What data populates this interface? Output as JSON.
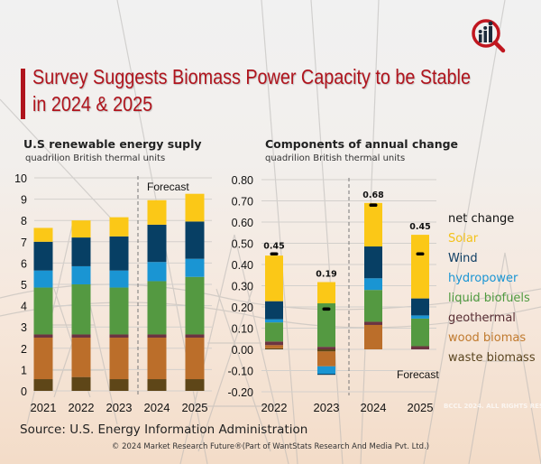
{
  "header": {
    "title_line1": "Survey Suggests Biomass Power Capacity to be Stable",
    "title_line2": "in 2024 & 2025",
    "logo": "market-research-future-logo"
  },
  "colors": {
    "accent": "#b0141d",
    "Solar": "#fbc817",
    "Wind": "#073f64",
    "hydropower": "#1a95d3",
    "liquid biofuels": "#549941",
    "geothermal": "#6c3441",
    "wood biomas": "#bb6e2a",
    "waste biomass": "#5e4618",
    "net change": "#000000"
  },
  "legend": {
    "items": [
      {
        "label": "net change",
        "color": "#111111"
      },
      {
        "label": "Solar",
        "color": "#f3c21a"
      },
      {
        "label": "Wind",
        "color": "#0e3d63"
      },
      {
        "label": "hydropower",
        "color": "#1a95d3"
      },
      {
        "label": "liquid biofuels",
        "color": "#4f9a3f"
      },
      {
        "label": "geothermal",
        "color": "#5a2f35"
      },
      {
        "label": "wood biomas",
        "color": "#c07a2e"
      },
      {
        "label": "waste biomass",
        "color": "#5a4520"
      }
    ]
  },
  "chart_data": [
    {
      "type": "bar",
      "stacked": true,
      "title": "U.S renewable energy suply",
      "subtitle": "quadrilion British thermal units",
      "xlabel": "",
      "ylabel": "",
      "categories": [
        "2021",
        "2022",
        "2023",
        "2024",
        "2025"
      ],
      "ylim": [
        0,
        10
      ],
      "yticks": [
        "0",
        "1",
        "2",
        "3",
        "4",
        "5",
        "6",
        "7",
        "8",
        "9",
        "10"
      ],
      "grid": true,
      "annotation": "Forecast",
      "forecast_start_index": 3,
      "series": [
        {
          "name": "waste biomass",
          "values": [
            0.55,
            0.65,
            0.55,
            0.55,
            0.55
          ]
        },
        {
          "name": "wood biomas",
          "values": [
            1.95,
            1.85,
            1.95,
            1.95,
            1.95
          ]
        },
        {
          "name": "geothermal",
          "values": [
            0.15,
            0.15,
            0.15,
            0.15,
            0.15
          ]
        },
        {
          "name": "liquid biofuels",
          "values": [
            2.2,
            2.35,
            2.2,
            2.5,
            2.7
          ]
        },
        {
          "name": "hydropower",
          "values": [
            0.8,
            0.85,
            0.8,
            0.9,
            0.85
          ]
        },
        {
          "name": "Wind",
          "values": [
            1.35,
            1.35,
            1.6,
            1.75,
            1.75
          ]
        },
        {
          "name": "Solar",
          "values": [
            0.65,
            0.8,
            0.9,
            1.15,
            1.3
          ]
        }
      ]
    },
    {
      "type": "bar",
      "stacked": true,
      "title": "Components of annual change",
      "subtitle": "quadrilion British thermal units",
      "xlabel": "",
      "ylabel": "",
      "categories": [
        "2022",
        "2023",
        "2024",
        "2025"
      ],
      "ylim": [
        -0.2,
        0.8
      ],
      "yticks": [
        "-0.20",
        "-0.10",
        "0.00",
        "0.10",
        "0.20",
        "0.30",
        "0.40",
        "0.50",
        "0.60",
        "0.70",
        "0.80"
      ],
      "grid": true,
      "annotation": "Forecast",
      "forecast_start_index": 2,
      "net_change": [
        0.45,
        0.19,
        0.68,
        0.45
      ],
      "net_change_labels": [
        "0.45",
        "0.19",
        "0.68",
        "0.45"
      ],
      "series": [
        {
          "name": "waste biomass",
          "values": [
            0.005,
            -0.01,
            0.0,
            0.0
          ]
        },
        {
          "name": "wood biomas",
          "values": [
            0.015,
            -0.07,
            0.115,
            0.0
          ]
        },
        {
          "name": "geothermal",
          "values": [
            0.017,
            0.012,
            0.015,
            0.015
          ]
        },
        {
          "name": "liquid biofuels",
          "values": [
            0.09,
            0.205,
            0.15,
            0.13
          ]
        },
        {
          "name": "hydropower",
          "values": [
            0.015,
            -0.035,
            0.055,
            0.015
          ]
        },
        {
          "name": "Wind",
          "values": [
            0.085,
            -0.005,
            0.15,
            0.08
          ]
        },
        {
          "name": "Solar",
          "values": [
            0.215,
            0.1,
            0.205,
            0.3
          ]
        }
      ]
    }
  ],
  "footer": {
    "source": "Source: U.S. Energy Information Administration",
    "copyright": "© 2024 Market Research Future®(Part of WantStats Research And Media Pvt. Ltd.)",
    "watermark": "BCCL 2024. ALL RIGHTS RESERVED"
  }
}
